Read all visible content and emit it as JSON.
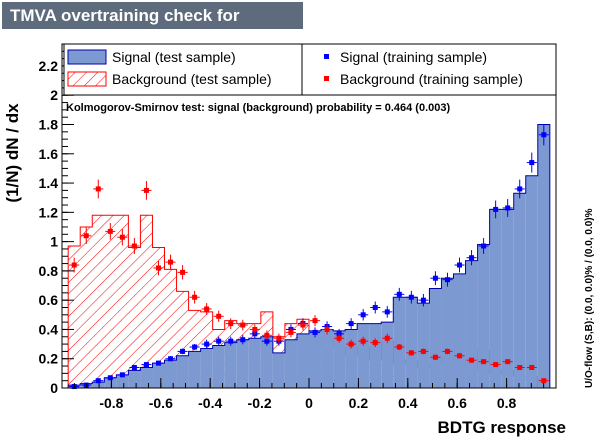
{
  "chart_data": {
    "type": "bar",
    "title": "TMVA overtraining check for classifier: BDTG",
    "xlabel": "BDTG response",
    "ylabel": "(1/N) dN / dx",
    "xlim": [
      -1.0,
      1.0
    ],
    "ylim": [
      0,
      2.35
    ],
    "xticks": [
      "-0.8",
      "-0.6",
      "-0.4",
      "-0.2",
      "0",
      "0.2",
      "0.4",
      "0.6",
      "0.8"
    ],
    "yticks": [
      "0",
      "0.2",
      "0.4",
      "0.6",
      "0.8",
      "1",
      "1.2",
      "1.4",
      "1.6",
      "1.8",
      "2",
      "2.2"
    ],
    "annotation": "Kolmogorov-Smirnov test: signal (background) probability = 0.464 (0.003)",
    "overflow_text": "U/O-flow (S,B): (0.0, 0.0)% / (0.0, 0.0)%",
    "legend_placement": "top",
    "bin_edges": [
      -0.975,
      0.975,
      40
    ],
    "series": [
      {
        "name": "Signal (test sample)",
        "style": "filled-histogram",
        "color": "#7d99d1",
        "values": [
          0.02,
          0.03,
          0.04,
          0.07,
          0.09,
          0.12,
          0.14,
          0.17,
          0.19,
          0.22,
          0.25,
          0.27,
          0.29,
          0.31,
          0.33,
          0.34,
          0.35,
          0.24,
          0.33,
          0.37,
          0.39,
          0.4,
          0.39,
          0.4,
          0.44,
          0.44,
          0.45,
          0.62,
          0.62,
          0.58,
          0.68,
          0.75,
          0.78,
          0.87,
          0.98,
          1.22,
          1.22,
          1.33,
          1.45,
          1.8
        ]
      },
      {
        "name": "Background (test sample)",
        "style": "hatched-histogram",
        "color": "#ff0000",
        "values": [
          0.97,
          1.1,
          1.18,
          1.18,
          1.18,
          0.96,
          1.18,
          0.96,
          0.81,
          0.66,
          0.53,
          0.52,
          0.4,
          0.46,
          0.44,
          0.44,
          0.52,
          0.35,
          0.44,
          0.47,
          0.29,
          0.34,
          0.28,
          0.23,
          0.28,
          0.19,
          0.32,
          0.17,
          0.19,
          0.14,
          0.17,
          0.21,
          0.19,
          0.13,
          0.26,
          0.1,
          0.12,
          0.08,
          0.08,
          0.0
        ]
      },
      {
        "name": "Signal (training sample)",
        "style": "points",
        "color": "#0000ff",
        "values": [
          0.01,
          0.02,
          0.05,
          0.07,
          0.09,
          0.14,
          0.16,
          0.17,
          0.2,
          0.25,
          0.28,
          0.3,
          0.32,
          0.32,
          0.33,
          0.37,
          0.32,
          0.32,
          0.4,
          0.44,
          0.38,
          0.42,
          0.37,
          0.44,
          0.5,
          0.55,
          0.52,
          0.64,
          0.62,
          0.6,
          0.75,
          0.74,
          0.84,
          0.89,
          0.97,
          1.22,
          1.23,
          1.36,
          1.54,
          1.73
        ]
      },
      {
        "name": "Background (training sample)",
        "style": "points",
        "color": "#ff0000",
        "values": [
          0.84,
          1.04,
          1.36,
          1.07,
          1.03,
          0.97,
          1.35,
          0.82,
          0.86,
          0.79,
          0.62,
          0.54,
          0.49,
          0.44,
          0.43,
          0.4,
          0.36,
          0.34,
          0.38,
          0.43,
          0.46,
          0.4,
          0.34,
          0.3,
          0.32,
          0.31,
          0.34,
          0.28,
          0.24,
          0.25,
          0.21,
          0.25,
          0.22,
          0.19,
          0.18,
          0.16,
          0.18,
          0.14,
          0.14,
          0.05
        ]
      }
    ]
  }
}
